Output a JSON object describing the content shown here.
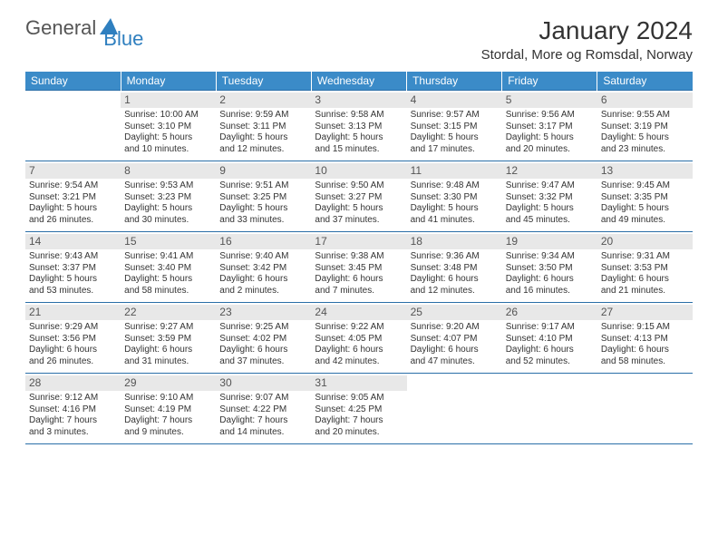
{
  "brand": {
    "part1": "General",
    "part2": "Blue"
  },
  "title": "January 2024",
  "location": "Stordal, More og Romsdal, Norway",
  "colors": {
    "header_bg": "#3b8bc8",
    "header_text": "#ffffff",
    "rule": "#2a6fa8",
    "daynum_bg": "#e8e8e8",
    "body_text": "#333333",
    "brand_gray": "#555555",
    "brand_blue": "#2f7fbf"
  },
  "day_headers": [
    "Sunday",
    "Monday",
    "Tuesday",
    "Wednesday",
    "Thursday",
    "Friday",
    "Saturday"
  ],
  "weeks": [
    [
      {
        "n": "",
        "sr": "",
        "ss": "",
        "d1": "",
        "d2": ""
      },
      {
        "n": "1",
        "sr": "Sunrise: 10:00 AM",
        "ss": "Sunset: 3:10 PM",
        "d1": "Daylight: 5 hours",
        "d2": "and 10 minutes."
      },
      {
        "n": "2",
        "sr": "Sunrise: 9:59 AM",
        "ss": "Sunset: 3:11 PM",
        "d1": "Daylight: 5 hours",
        "d2": "and 12 minutes."
      },
      {
        "n": "3",
        "sr": "Sunrise: 9:58 AM",
        "ss": "Sunset: 3:13 PM",
        "d1": "Daylight: 5 hours",
        "d2": "and 15 minutes."
      },
      {
        "n": "4",
        "sr": "Sunrise: 9:57 AM",
        "ss": "Sunset: 3:15 PM",
        "d1": "Daylight: 5 hours",
        "d2": "and 17 minutes."
      },
      {
        "n": "5",
        "sr": "Sunrise: 9:56 AM",
        "ss": "Sunset: 3:17 PM",
        "d1": "Daylight: 5 hours",
        "d2": "and 20 minutes."
      },
      {
        "n": "6",
        "sr": "Sunrise: 9:55 AM",
        "ss": "Sunset: 3:19 PM",
        "d1": "Daylight: 5 hours",
        "d2": "and 23 minutes."
      }
    ],
    [
      {
        "n": "7",
        "sr": "Sunrise: 9:54 AM",
        "ss": "Sunset: 3:21 PM",
        "d1": "Daylight: 5 hours",
        "d2": "and 26 minutes."
      },
      {
        "n": "8",
        "sr": "Sunrise: 9:53 AM",
        "ss": "Sunset: 3:23 PM",
        "d1": "Daylight: 5 hours",
        "d2": "and 30 minutes."
      },
      {
        "n": "9",
        "sr": "Sunrise: 9:51 AM",
        "ss": "Sunset: 3:25 PM",
        "d1": "Daylight: 5 hours",
        "d2": "and 33 minutes."
      },
      {
        "n": "10",
        "sr": "Sunrise: 9:50 AM",
        "ss": "Sunset: 3:27 PM",
        "d1": "Daylight: 5 hours",
        "d2": "and 37 minutes."
      },
      {
        "n": "11",
        "sr": "Sunrise: 9:48 AM",
        "ss": "Sunset: 3:30 PM",
        "d1": "Daylight: 5 hours",
        "d2": "and 41 minutes."
      },
      {
        "n": "12",
        "sr": "Sunrise: 9:47 AM",
        "ss": "Sunset: 3:32 PM",
        "d1": "Daylight: 5 hours",
        "d2": "and 45 minutes."
      },
      {
        "n": "13",
        "sr": "Sunrise: 9:45 AM",
        "ss": "Sunset: 3:35 PM",
        "d1": "Daylight: 5 hours",
        "d2": "and 49 minutes."
      }
    ],
    [
      {
        "n": "14",
        "sr": "Sunrise: 9:43 AM",
        "ss": "Sunset: 3:37 PM",
        "d1": "Daylight: 5 hours",
        "d2": "and 53 minutes."
      },
      {
        "n": "15",
        "sr": "Sunrise: 9:41 AM",
        "ss": "Sunset: 3:40 PM",
        "d1": "Daylight: 5 hours",
        "d2": "and 58 minutes."
      },
      {
        "n": "16",
        "sr": "Sunrise: 9:40 AM",
        "ss": "Sunset: 3:42 PM",
        "d1": "Daylight: 6 hours",
        "d2": "and 2 minutes."
      },
      {
        "n": "17",
        "sr": "Sunrise: 9:38 AM",
        "ss": "Sunset: 3:45 PM",
        "d1": "Daylight: 6 hours",
        "d2": "and 7 minutes."
      },
      {
        "n": "18",
        "sr": "Sunrise: 9:36 AM",
        "ss": "Sunset: 3:48 PM",
        "d1": "Daylight: 6 hours",
        "d2": "and 12 minutes."
      },
      {
        "n": "19",
        "sr": "Sunrise: 9:34 AM",
        "ss": "Sunset: 3:50 PM",
        "d1": "Daylight: 6 hours",
        "d2": "and 16 minutes."
      },
      {
        "n": "20",
        "sr": "Sunrise: 9:31 AM",
        "ss": "Sunset: 3:53 PM",
        "d1": "Daylight: 6 hours",
        "d2": "and 21 minutes."
      }
    ],
    [
      {
        "n": "21",
        "sr": "Sunrise: 9:29 AM",
        "ss": "Sunset: 3:56 PM",
        "d1": "Daylight: 6 hours",
        "d2": "and 26 minutes."
      },
      {
        "n": "22",
        "sr": "Sunrise: 9:27 AM",
        "ss": "Sunset: 3:59 PM",
        "d1": "Daylight: 6 hours",
        "d2": "and 31 minutes."
      },
      {
        "n": "23",
        "sr": "Sunrise: 9:25 AM",
        "ss": "Sunset: 4:02 PM",
        "d1": "Daylight: 6 hours",
        "d2": "and 37 minutes."
      },
      {
        "n": "24",
        "sr": "Sunrise: 9:22 AM",
        "ss": "Sunset: 4:05 PM",
        "d1": "Daylight: 6 hours",
        "d2": "and 42 minutes."
      },
      {
        "n": "25",
        "sr": "Sunrise: 9:20 AM",
        "ss": "Sunset: 4:07 PM",
        "d1": "Daylight: 6 hours",
        "d2": "and 47 minutes."
      },
      {
        "n": "26",
        "sr": "Sunrise: 9:17 AM",
        "ss": "Sunset: 4:10 PM",
        "d1": "Daylight: 6 hours",
        "d2": "and 52 minutes."
      },
      {
        "n": "27",
        "sr": "Sunrise: 9:15 AM",
        "ss": "Sunset: 4:13 PM",
        "d1": "Daylight: 6 hours",
        "d2": "and 58 minutes."
      }
    ],
    [
      {
        "n": "28",
        "sr": "Sunrise: 9:12 AM",
        "ss": "Sunset: 4:16 PM",
        "d1": "Daylight: 7 hours",
        "d2": "and 3 minutes."
      },
      {
        "n": "29",
        "sr": "Sunrise: 9:10 AM",
        "ss": "Sunset: 4:19 PM",
        "d1": "Daylight: 7 hours",
        "d2": "and 9 minutes."
      },
      {
        "n": "30",
        "sr": "Sunrise: 9:07 AM",
        "ss": "Sunset: 4:22 PM",
        "d1": "Daylight: 7 hours",
        "d2": "and 14 minutes."
      },
      {
        "n": "31",
        "sr": "Sunrise: 9:05 AM",
        "ss": "Sunset: 4:25 PM",
        "d1": "Daylight: 7 hours",
        "d2": "and 20 minutes."
      },
      {
        "n": "",
        "sr": "",
        "ss": "",
        "d1": "",
        "d2": ""
      },
      {
        "n": "",
        "sr": "",
        "ss": "",
        "d1": "",
        "d2": ""
      },
      {
        "n": "",
        "sr": "",
        "ss": "",
        "d1": "",
        "d2": ""
      }
    ]
  ]
}
